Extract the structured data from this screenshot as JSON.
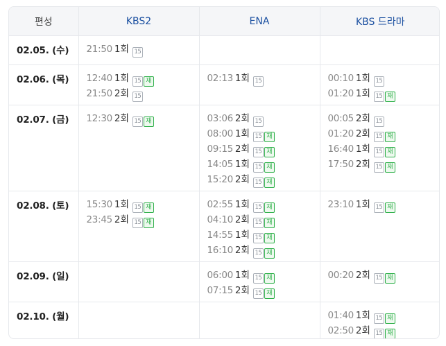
{
  "header": {
    "date_col": "편성",
    "channels": [
      "KBS2",
      "ENA",
      "KBS 드라마"
    ]
  },
  "badges": {
    "age": "15",
    "rerun": "재"
  },
  "rows": [
    {
      "date": "02.05. (수)",
      "cells": [
        [
          {
            "time": "21:50",
            "ep": "1회",
            "rerun": false
          }
        ],
        [],
        []
      ]
    },
    {
      "date": "02.06. (목)",
      "cells": [
        [
          {
            "time": "12:40",
            "ep": "1회",
            "rerun": true
          },
          {
            "time": "21:50",
            "ep": "2회",
            "rerun": false
          }
        ],
        [
          {
            "time": "02:13",
            "ep": "1회",
            "rerun": false
          }
        ],
        [
          {
            "time": "00:10",
            "ep": "1회",
            "rerun": false
          },
          {
            "time": "01:20",
            "ep": "1회",
            "rerun": true
          }
        ]
      ]
    },
    {
      "date": "02.07. (금)",
      "cells": [
        [
          {
            "time": "12:30",
            "ep": "2회",
            "rerun": true
          }
        ],
        [
          {
            "time": "03:06",
            "ep": "2회",
            "rerun": false
          },
          {
            "time": "08:00",
            "ep": "1회",
            "rerun": true
          },
          {
            "time": "09:15",
            "ep": "2회",
            "rerun": true
          },
          {
            "time": "14:05",
            "ep": "1회",
            "rerun": true
          },
          {
            "time": "15:20",
            "ep": "2회",
            "rerun": true
          }
        ],
        [
          {
            "time": "00:05",
            "ep": "2회",
            "rerun": false
          },
          {
            "time": "01:20",
            "ep": "2회",
            "rerun": true
          },
          {
            "time": "16:40",
            "ep": "1회",
            "rerun": true
          },
          {
            "time": "17:50",
            "ep": "2회",
            "rerun": true
          }
        ]
      ]
    },
    {
      "date": "02.08. (토)",
      "cells": [
        [
          {
            "time": "15:30",
            "ep": "1회",
            "rerun": true
          },
          {
            "time": "23:45",
            "ep": "2회",
            "rerun": true
          }
        ],
        [
          {
            "time": "02:55",
            "ep": "1회",
            "rerun": true
          },
          {
            "time": "04:10",
            "ep": "2회",
            "rerun": true
          },
          {
            "time": "14:55",
            "ep": "1회",
            "rerun": true
          },
          {
            "time": "16:10",
            "ep": "2회",
            "rerun": true
          }
        ],
        [
          {
            "time": "23:10",
            "ep": "1회",
            "rerun": true
          }
        ]
      ]
    },
    {
      "date": "02.09. (일)",
      "cells": [
        [],
        [
          {
            "time": "06:00",
            "ep": "1회",
            "rerun": true
          },
          {
            "time": "07:15",
            "ep": "2회",
            "rerun": true
          }
        ],
        [
          {
            "time": "00:20",
            "ep": "2회",
            "rerun": true
          }
        ]
      ]
    },
    {
      "date": "02.10. (월)",
      "cells": [
        [],
        [],
        [
          {
            "time": "01:40",
            "ep": "1회",
            "rerun": true
          },
          {
            "time": "02:50",
            "ep": "2회",
            "rerun": true
          }
        ]
      ]
    }
  ]
}
